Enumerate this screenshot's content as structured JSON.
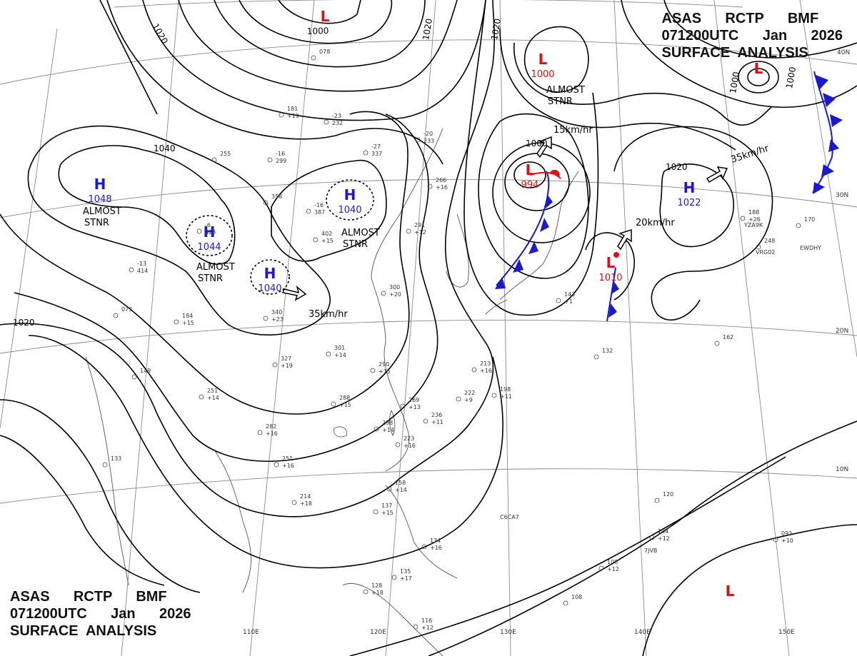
{
  "chart_title": {
    "line1": "ASAS      RCTP      BMF",
    "line2": "071200UTC      Jan      2026",
    "line3": "SURFACE  ANALYSIS"
  },
  "map": {
    "longitude_labels": [
      "110E",
      "120E",
      "130E",
      "140E",
      "150E"
    ],
    "latitude_labels": [
      "40N",
      "30N",
      "20N",
      "10N"
    ]
  },
  "systems": [
    {
      "type": "H",
      "pressure": "1048",
      "color": "#1a1acc"
    },
    {
      "type": "H",
      "pressure": "1044",
      "color": "#1a1acc"
    },
    {
      "type": "H",
      "pressure": "1040",
      "color": "#1a1acc"
    },
    {
      "type": "H",
      "pressure": "1040",
      "color": "#1a1acc"
    },
    {
      "type": "H",
      "pressure": "1022",
      "color": "#1a1acc"
    },
    {
      "type": "L",
      "pressure": "1000",
      "color": "#dd1111"
    },
    {
      "type": "L",
      "pressure": "994",
      "color": "#dd1111"
    },
    {
      "type": "L",
      "pressure": "1010",
      "color": "#dd1111"
    },
    {
      "type": "L",
      "pressure": "",
      "color": "#dd1111"
    },
    {
      "type": "L",
      "pressure": "",
      "color": "#dd1111"
    },
    {
      "type": "L",
      "pressure": "",
      "color": "#dd1111"
    }
  ],
  "isobar_labels": [
    "1000",
    "1020",
    "1040",
    "1020",
    "1020",
    "1020",
    "1000",
    "1000",
    "1000",
    "1020"
  ],
  "motion_labels": [
    "35km/hr",
    "15km/hr",
    "35km/hr",
    "20km/hr"
  ],
  "stationary_notes": [
    "ALMOST\nSTNR",
    "ALMOST\nSTNR",
    "ALMOST\nSTNR",
    "ALMOST\nSTNR"
  ],
  "station_plots": [
    "-27 337",
    "-16 387",
    "402 +15",
    "-13 414",
    "073",
    "184 +15",
    "340 +23",
    "327 +19",
    "301 +14",
    "290 +15",
    "288 +15",
    "269 +13",
    "236 +11",
    "222 +9",
    "198 +11",
    "213 +16",
    "300 +20",
    "291 +12",
    "266 +16",
    "143 +1",
    "132",
    "162",
    "170",
    "248",
    "188 +26",
    "251 +14",
    "149",
    "133",
    "214 +18",
    "251 +16",
    "282 +16",
    "298 +14",
    "223 +16",
    "158 +14",
    "137 +15",
    "134 +16",
    "135 +17",
    "128 +18",
    "116 +12",
    "120",
    "104 +12",
    "108 +12",
    "093 +10",
    "108",
    "-20 233",
    "-23 232",
    "181 +19",
    "255",
    "-16 299",
    "358",
    "-6 423",
    "078"
  ],
  "ship_ids": [
    "C6CA7",
    "YZA9K",
    "VRG02",
    "EWDHY",
    "7JVB"
  ],
  "colors": {
    "high": "#1a1acc",
    "low": "#dd1111",
    "front": "#1a1acc",
    "isobar": "#000000",
    "grid": "#888888",
    "coast": "#555555"
  }
}
